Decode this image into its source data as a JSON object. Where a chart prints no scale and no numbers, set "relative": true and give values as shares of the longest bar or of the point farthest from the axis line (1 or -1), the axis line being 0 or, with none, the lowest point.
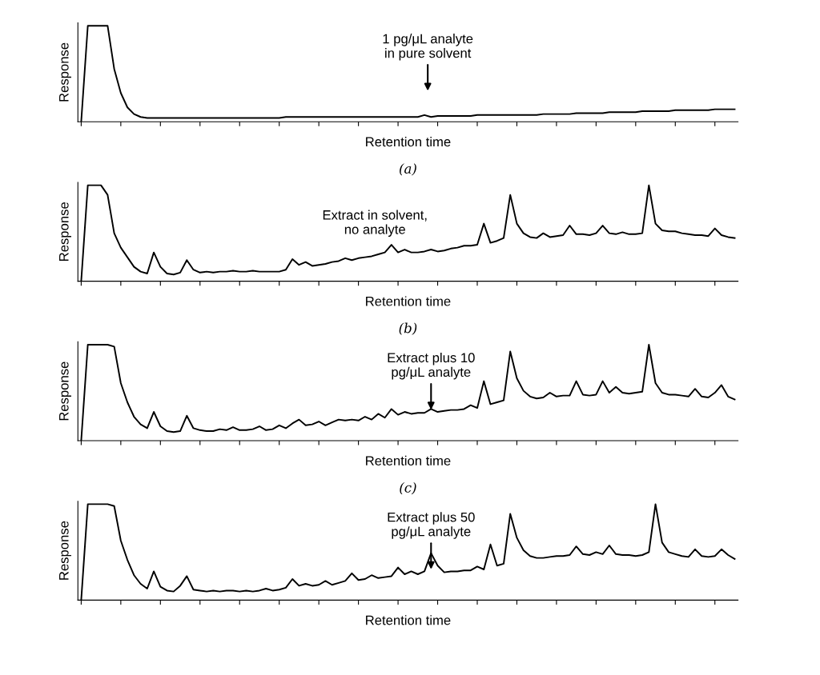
{
  "chart_data": [
    {
      "type": "line",
      "relative": true,
      "title": "(a)",
      "xlabel": "Retention time",
      "ylabel": "Response",
      "annotations": [
        "1 pg/μL analyte\nin pure solvent"
      ],
      "color": "#000000",
      "categories": [
        null,
        null,
        null,
        null,
        null,
        null,
        null,
        null,
        null,
        null,
        null,
        null,
        null,
        null,
        null,
        null,
        null,
        null,
        null,
        null,
        null,
        null,
        null,
        null,
        null,
        null,
        null,
        null,
        null,
        null,
        null,
        null,
        null,
        null,
        null,
        null,
        null,
        null,
        null,
        null,
        null,
        null,
        null,
        null,
        null,
        null,
        null,
        null,
        null,
        null,
        null,
        null,
        null,
        null,
        null,
        null,
        null,
        null,
        null,
        null,
        null,
        null,
        null,
        null,
        null,
        null,
        null,
        null,
        null,
        null,
        null,
        null,
        null,
        null,
        null,
        null,
        null,
        null,
        null,
        null,
        null,
        null,
        null,
        null,
        null,
        null,
        null,
        null,
        null,
        null,
        null,
        null,
        null,
        null,
        null,
        null,
        null,
        null,
        null,
        null
      ],
      "values": [
        0,
        1,
        1,
        1,
        1,
        0.55,
        0.3,
        0.15,
        0.08,
        0.05,
        0.04,
        0.04,
        0.04,
        0.04,
        0.04,
        0.04,
        0.04,
        0.04,
        0.04,
        0.04,
        0.04,
        0.04,
        0.04,
        0.04,
        0.04,
        0.04,
        0.04,
        0.04,
        0.04,
        0.04,
        0.04,
        0.05,
        0.05,
        0.05,
        0.05,
        0.05,
        0.05,
        0.05,
        0.05,
        0.05,
        0.05,
        0.05,
        0.05,
        0.05,
        0.05,
        0.05,
        0.05,
        0.05,
        0.05,
        0.05,
        0.05,
        0.05,
        0.07,
        0.05,
        0.06,
        0.06,
        0.06,
        0.06,
        0.06,
        0.06,
        0.07,
        0.07,
        0.07,
        0.07,
        0.07,
        0.07,
        0.07,
        0.07,
        0.07,
        0.07,
        0.08,
        0.08,
        0.08,
        0.08,
        0.08,
        0.09,
        0.09,
        0.09,
        0.09,
        0.09,
        0.1,
        0.1,
        0.1,
        0.1,
        0.1,
        0.11,
        0.11,
        0.11,
        0.11,
        0.11,
        0.12,
        0.12,
        0.12,
        0.12,
        0.12,
        0.12,
        0.13,
        0.13,
        0.13,
        0.13
      ]
    },
    {
      "type": "line",
      "relative": true,
      "title": "(b)",
      "xlabel": "Retention time",
      "ylabel": "Response",
      "annotations": [
        "Extract in solvent,\nno analyte"
      ],
      "color": "#000000",
      "categories": [
        null,
        null,
        null,
        null,
        null,
        null,
        null,
        null,
        null,
        null,
        null,
        null,
        null,
        null,
        null,
        null,
        null,
        null,
        null,
        null,
        null,
        null,
        null,
        null,
        null,
        null,
        null,
        null,
        null,
        null,
        null,
        null,
        null,
        null,
        null,
        null,
        null,
        null,
        null,
        null,
        null,
        null,
        null,
        null,
        null,
        null,
        null,
        null,
        null,
        null,
        null,
        null,
        null,
        null,
        null,
        null,
        null,
        null,
        null,
        null,
        null,
        null,
        null,
        null,
        null,
        null,
        null,
        null,
        null,
        null,
        null,
        null,
        null,
        null,
        null,
        null,
        null,
        null,
        null,
        null,
        null,
        null,
        null,
        null,
        null,
        null,
        null,
        null,
        null,
        null,
        null,
        null,
        null,
        null,
        null,
        null,
        null,
        null,
        null,
        null
      ],
      "values": [
        0,
        1,
        1,
        1,
        0.9,
        0.5,
        0.35,
        0.25,
        0.15,
        0.1,
        0.08,
        0.3,
        0.15,
        0.08,
        0.07,
        0.09,
        0.22,
        0.12,
        0.09,
        0.1,
        0.09,
        0.1,
        0.1,
        0.11,
        0.1,
        0.1,
        0.11,
        0.1,
        0.1,
        0.1,
        0.1,
        0.12,
        0.23,
        0.17,
        0.2,
        0.16,
        0.17,
        0.18,
        0.2,
        0.21,
        0.24,
        0.22,
        0.24,
        0.25,
        0.26,
        0.28,
        0.3,
        0.38,
        0.3,
        0.33,
        0.3,
        0.3,
        0.31,
        0.33,
        0.31,
        0.32,
        0.34,
        0.35,
        0.37,
        0.37,
        0.38,
        0.6,
        0.4,
        0.42,
        0.45,
        0.9,
        0.6,
        0.5,
        0.46,
        0.45,
        0.5,
        0.46,
        0.47,
        0.48,
        0.58,
        0.49,
        0.49,
        0.48,
        0.5,
        0.58,
        0.5,
        0.49,
        0.51,
        0.49,
        0.49,
        0.5,
        1.0,
        0.6,
        0.53,
        0.52,
        0.52,
        0.5,
        0.49,
        0.48,
        0.48,
        0.47,
        0.55,
        0.48,
        0.46,
        0.45
      ]
    },
    {
      "type": "line",
      "relative": true,
      "title": "(c)",
      "xlabel": "Retention time",
      "ylabel": "Response",
      "annotations": [
        "Extract plus 10\npg/μL analyte"
      ],
      "color": "#000000",
      "categories": [
        null,
        null,
        null,
        null,
        null,
        null,
        null,
        null,
        null,
        null,
        null,
        null,
        null,
        null,
        null,
        null,
        null,
        null,
        null,
        null,
        null,
        null,
        null,
        null,
        null,
        null,
        null,
        null,
        null,
        null,
        null,
        null,
        null,
        null,
        null,
        null,
        null,
        null,
        null,
        null,
        null,
        null,
        null,
        null,
        null,
        null,
        null,
        null,
        null,
        null,
        null,
        null,
        null,
        null,
        null,
        null,
        null,
        null,
        null,
        null,
        null,
        null,
        null,
        null,
        null,
        null,
        null,
        null,
        null,
        null,
        null,
        null,
        null,
        null,
        null,
        null,
        null,
        null,
        null,
        null,
        null,
        null,
        null,
        null,
        null,
        null,
        null,
        null,
        null,
        null,
        null,
        null,
        null,
        null,
        null,
        null,
        null,
        null,
        null,
        null
      ],
      "values": [
        0,
        1,
        1,
        1,
        1,
        0.98,
        0.6,
        0.4,
        0.25,
        0.17,
        0.13,
        0.3,
        0.15,
        0.1,
        0.09,
        0.1,
        0.26,
        0.13,
        0.11,
        0.1,
        0.1,
        0.12,
        0.11,
        0.14,
        0.11,
        0.11,
        0.12,
        0.15,
        0.11,
        0.12,
        0.16,
        0.13,
        0.18,
        0.22,
        0.16,
        0.17,
        0.2,
        0.16,
        0.19,
        0.22,
        0.21,
        0.22,
        0.21,
        0.25,
        0.22,
        0.28,
        0.24,
        0.33,
        0.27,
        0.3,
        0.28,
        0.29,
        0.29,
        0.33,
        0.3,
        0.31,
        0.32,
        0.32,
        0.33,
        0.37,
        0.34,
        0.62,
        0.38,
        0.4,
        0.42,
        0.93,
        0.65,
        0.52,
        0.46,
        0.44,
        0.45,
        0.5,
        0.46,
        0.47,
        0.47,
        0.62,
        0.48,
        0.47,
        0.48,
        0.62,
        0.5,
        0.56,
        0.5,
        0.49,
        0.5,
        0.51,
        1.0,
        0.6,
        0.5,
        0.48,
        0.48,
        0.47,
        0.46,
        0.54,
        0.46,
        0.45,
        0.5,
        0.58,
        0.46,
        0.43
      ]
    },
    {
      "type": "line",
      "relative": true,
      "xlabel": "Retention time",
      "ylabel": "Response",
      "annotations": [
        "Extract plus 50\npg/μL analyte"
      ],
      "color": "#000000",
      "categories": [
        null,
        null,
        null,
        null,
        null,
        null,
        null,
        null,
        null,
        null,
        null,
        null,
        null,
        null,
        null,
        null,
        null,
        null,
        null,
        null,
        null,
        null,
        null,
        null,
        null,
        null,
        null,
        null,
        null,
        null,
        null,
        null,
        null,
        null,
        null,
        null,
        null,
        null,
        null,
        null,
        null,
        null,
        null,
        null,
        null,
        null,
        null,
        null,
        null,
        null,
        null,
        null,
        null,
        null,
        null,
        null,
        null,
        null,
        null,
        null,
        null,
        null,
        null,
        null,
        null,
        null,
        null,
        null,
        null,
        null,
        null,
        null,
        null,
        null,
        null,
        null,
        null,
        null,
        null,
        null,
        null,
        null,
        null,
        null,
        null,
        null,
        null,
        null,
        null,
        null,
        null,
        null,
        null,
        null,
        null,
        null,
        null,
        null,
        null,
        null
      ],
      "values": [
        0,
        1,
        1,
        1,
        1,
        0.98,
        0.62,
        0.42,
        0.26,
        0.17,
        0.12,
        0.3,
        0.14,
        0.1,
        0.09,
        0.15,
        0.25,
        0.11,
        0.1,
        0.09,
        0.1,
        0.09,
        0.1,
        0.1,
        0.09,
        0.1,
        0.09,
        0.1,
        0.12,
        0.1,
        0.11,
        0.13,
        0.22,
        0.15,
        0.17,
        0.15,
        0.16,
        0.2,
        0.16,
        0.18,
        0.2,
        0.28,
        0.21,
        0.22,
        0.26,
        0.23,
        0.24,
        0.25,
        0.34,
        0.27,
        0.3,
        0.27,
        0.3,
        0.49,
        0.36,
        0.29,
        0.3,
        0.3,
        0.31,
        0.31,
        0.35,
        0.32,
        0.58,
        0.36,
        0.38,
        0.9,
        0.65,
        0.52,
        0.46,
        0.44,
        0.44,
        0.45,
        0.46,
        0.46,
        0.47,
        0.56,
        0.48,
        0.47,
        0.5,
        0.48,
        0.57,
        0.48,
        0.47,
        0.47,
        0.46,
        0.47,
        0.5,
        1.0,
        0.6,
        0.5,
        0.48,
        0.46,
        0.45,
        0.53,
        0.46,
        0.45,
        0.46,
        0.53,
        0.47,
        0.43
      ]
    }
  ]
}
